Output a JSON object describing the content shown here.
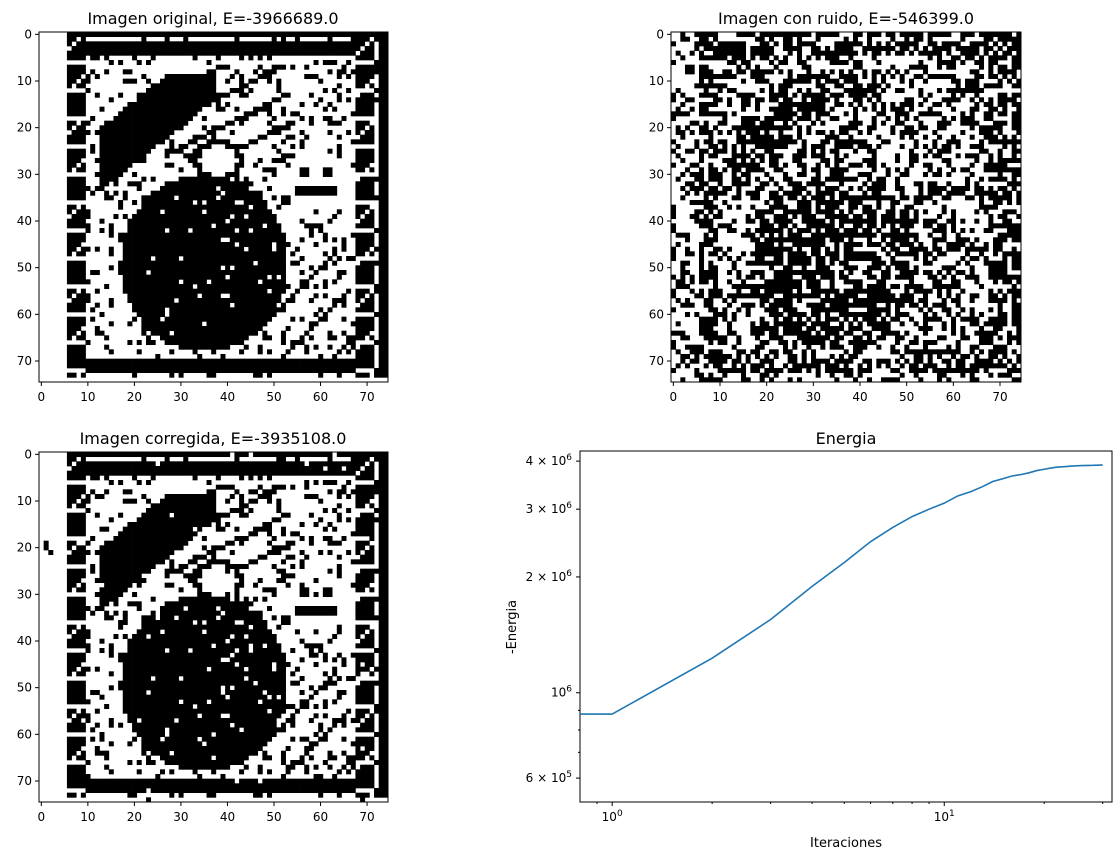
{
  "chart_data": [
    {
      "type": "heatmap",
      "title": "Imagen original, E=-3966689.0",
      "rows": 75,
      "cols": 75,
      "colormap": [
        "#ffffff",
        "#000000"
      ],
      "xticks": [
        0,
        10,
        20,
        30,
        40,
        50,
        60,
        70
      ],
      "yticks": [
        0,
        10,
        20,
        30,
        40,
        50,
        60,
        70
      ],
      "xlim": [
        -0.5,
        74.5
      ],
      "ylim": [
        74.5,
        -0.5
      ],
      "grid": false
    },
    {
      "type": "heatmap",
      "title": "Imagen con ruido, E=-546399.0",
      "rows": 75,
      "cols": 75,
      "colormap": [
        "#ffffff",
        "#000000"
      ],
      "xticks": [
        0,
        10,
        20,
        30,
        40,
        50,
        60,
        70
      ],
      "yticks": [
        0,
        10,
        20,
        30,
        40,
        50,
        60,
        70
      ],
      "xlim": [
        -0.5,
        74.5
      ],
      "ylim": [
        74.5,
        -0.5
      ],
      "grid": false
    },
    {
      "type": "heatmap",
      "title": "Imagen corregida, E=-3935108.0",
      "rows": 75,
      "cols": 75,
      "colormap": [
        "#ffffff",
        "#000000"
      ],
      "xticks": [
        0,
        10,
        20,
        30,
        40,
        50,
        60,
        70
      ],
      "yticks": [
        0,
        10,
        20,
        30,
        40,
        50,
        60,
        70
      ],
      "xlim": [
        -0.5,
        74.5
      ],
      "ylim": [
        74.5,
        -0.5
      ],
      "grid": false
    },
    {
      "type": "line",
      "title": "Energia",
      "xlabel": "Iteraciones",
      "ylabel": "-Energia",
      "xscale": "log",
      "yscale": "log",
      "xlim": [
        0.8,
        32
      ],
      "ylim": [
        520000,
        4250000
      ],
      "xticks": [
        {
          "value": 1,
          "base": "10",
          "exp": "0"
        },
        {
          "value": 10,
          "base": "10",
          "exp": "1"
        }
      ],
      "yticks": [
        {
          "value": 600000,
          "mant": "6 × 10",
          "exp": "5"
        },
        {
          "value": 1000000,
          "mant": "10",
          "exp": "6"
        },
        {
          "value": 2000000,
          "mant": "2 × 10",
          "exp": "6"
        },
        {
          "value": 3000000,
          "mant": "3 × 10",
          "exp": "6"
        },
        {
          "value": 4000000,
          "mant": "4 × 10",
          "exp": "6"
        }
      ],
      "grid": false,
      "series": [
        {
          "color": "#1f77b4",
          "x": [
            0,
            1,
            2,
            3,
            4,
            5,
            6,
            7,
            8,
            9,
            10,
            11,
            12,
            13,
            14,
            15,
            16,
            17,
            18,
            19,
            20,
            21,
            22,
            23,
            24,
            25,
            26,
            27,
            28,
            29,
            30
          ],
          "y": [
            880000,
            880000,
            1230000,
            1550000,
            1890000,
            2180000,
            2470000,
            2690000,
            2870000,
            3000000,
            3110000,
            3250000,
            3330000,
            3430000,
            3540000,
            3600000,
            3660000,
            3690000,
            3730000,
            3780000,
            3810000,
            3840000,
            3860000,
            3870000,
            3880000,
            3890000,
            3895000,
            3898000,
            3900000,
            3905000,
            3910000
          ]
        }
      ]
    }
  ]
}
